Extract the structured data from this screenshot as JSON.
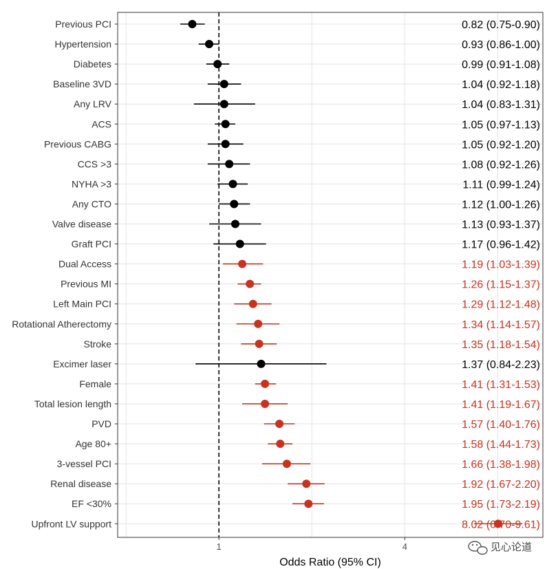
{
  "chart_data": {
    "type": "scatter",
    "subtype": "forest-plot",
    "title": "",
    "xlabel": "Odds Ratio (95% CI)",
    "ylabel": "",
    "x_scale": "log",
    "xlim": [
      0.47,
      11.2
    ],
    "x_ticks": [
      1,
      4
    ],
    "x_tick_labels": [
      "1",
      "4"
    ],
    "reference_line": 1,
    "grid": true,
    "legend": "none",
    "colors": {
      "significant": "#c8321e",
      "non_significant": "#000000"
    },
    "rows": [
      {
        "label": "Previous PCI",
        "or": 0.82,
        "lo": 0.75,
        "hi": 0.9,
        "ci_text": "0.82 (0.75-0.90)",
        "significant": false
      },
      {
        "label": "Hypertension",
        "or": 0.93,
        "lo": 0.86,
        "hi": 1.0,
        "ci_text": "0.93 (0.86-1.00)",
        "significant": false
      },
      {
        "label": "Diabetes",
        "or": 0.99,
        "lo": 0.91,
        "hi": 1.08,
        "ci_text": "0.99 (0.91-1.08)",
        "significant": false
      },
      {
        "label": "Baseline 3VD",
        "or": 1.04,
        "lo": 0.92,
        "hi": 1.18,
        "ci_text": "1.04 (0.92-1.18)",
        "significant": false
      },
      {
        "label": "Any LRV",
        "or": 1.04,
        "lo": 0.83,
        "hi": 1.31,
        "ci_text": "1.04 (0.83-1.31)",
        "significant": false
      },
      {
        "label": "ACS",
        "or": 1.05,
        "lo": 0.97,
        "hi": 1.13,
        "ci_text": "1.05 (0.97-1.13)",
        "significant": false
      },
      {
        "label": "Previous CABG",
        "or": 1.05,
        "lo": 0.92,
        "hi": 1.2,
        "ci_text": "1.05 (0.92-1.20)",
        "significant": false
      },
      {
        "label": "CCS >3",
        "or": 1.08,
        "lo": 0.92,
        "hi": 1.26,
        "ci_text": "1.08 (0.92-1.26)",
        "significant": false
      },
      {
        "label": "NYHA >3",
        "or": 1.11,
        "lo": 0.99,
        "hi": 1.24,
        "ci_text": "1.11 (0.99-1.24)",
        "significant": false
      },
      {
        "label": "Any CTO",
        "or": 1.12,
        "lo": 1.0,
        "hi": 1.26,
        "ci_text": "1.12 (1.00-1.26)",
        "significant": false
      },
      {
        "label": "Valve disease",
        "or": 1.13,
        "lo": 0.93,
        "hi": 1.37,
        "ci_text": "1.13 (0.93-1.37)",
        "significant": false
      },
      {
        "label": "Graft PCI",
        "or": 1.17,
        "lo": 0.96,
        "hi": 1.42,
        "ci_text": "1.17 (0.96-1.42)",
        "significant": false
      },
      {
        "label": "Dual Access",
        "or": 1.19,
        "lo": 1.03,
        "hi": 1.39,
        "ci_text": "1.19 (1.03-1.39)",
        "significant": true
      },
      {
        "label": "Previous MI",
        "or": 1.26,
        "lo": 1.15,
        "hi": 1.37,
        "ci_text": "1.26 (1.15-1.37)",
        "significant": true
      },
      {
        "label": "Left Main PCI",
        "or": 1.29,
        "lo": 1.12,
        "hi": 1.48,
        "ci_text": "1.29 (1.12-1.48)",
        "significant": true
      },
      {
        "label": "Rotational Atherectomy",
        "or": 1.34,
        "lo": 1.14,
        "hi": 1.57,
        "ci_text": "1.34 (1.14-1.57)",
        "significant": true
      },
      {
        "label": "Stroke",
        "or": 1.35,
        "lo": 1.18,
        "hi": 1.54,
        "ci_text": "1.35 (1.18-1.54)",
        "significant": true
      },
      {
        "label": "Excimer laser",
        "or": 1.37,
        "lo": 0.84,
        "hi": 2.23,
        "ci_text": "1.37 (0.84-2.23)",
        "significant": false
      },
      {
        "label": "Female",
        "or": 1.41,
        "lo": 1.31,
        "hi": 1.53,
        "ci_text": "1.41 (1.31-1.53)",
        "significant": true
      },
      {
        "label": "Total lesion length",
        "or": 1.41,
        "lo": 1.19,
        "hi": 1.67,
        "ci_text": "1.41 (1.19-1.67)",
        "significant": true
      },
      {
        "label": "PVD",
        "or": 1.57,
        "lo": 1.4,
        "hi": 1.76,
        "ci_text": "1.57 (1.40-1.76)",
        "significant": true
      },
      {
        "label": "Age 80+",
        "or": 1.58,
        "lo": 1.44,
        "hi": 1.73,
        "ci_text": "1.58 (1.44-1.73)",
        "significant": true
      },
      {
        "label": "3-vessel PCI",
        "or": 1.66,
        "lo": 1.38,
        "hi": 1.98,
        "ci_text": "1.66 (1.38-1.98)",
        "significant": true
      },
      {
        "label": "Renal disease",
        "or": 1.92,
        "lo": 1.67,
        "hi": 2.2,
        "ci_text": "1.92 (1.67-2.20)",
        "significant": true
      },
      {
        "label": "EF <30%",
        "or": 1.95,
        "lo": 1.73,
        "hi": 2.19,
        "ci_text": "1.95 (1.73-2.19)",
        "significant": true
      },
      {
        "label": "Upfront LV support",
        "or": 8.02,
        "lo": 6.7,
        "hi": 9.61,
        "ci_text": "8.02 (6.70-9.61)",
        "significant": true
      }
    ]
  },
  "watermark": {
    "text": "见心论道",
    "icon": "wechat-logo-icon"
  }
}
